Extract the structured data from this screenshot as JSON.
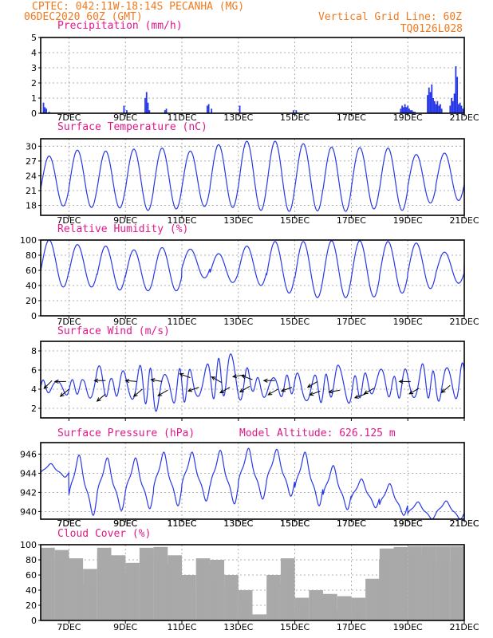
{
  "header": {
    "left_line1": "CPTEC:   042:11W-18:14S  PECANHA (MG)",
    "left_line2": "06DEC2020 60Z (GMT)",
    "right_line1": "Vertical Grid Line: 60Z",
    "right_line2": "TQ0126L028"
  },
  "colors": {
    "header": "#f07a1e",
    "title": "#e0188a",
    "line": "#2838e6",
    "cloud": "#a9a9a9",
    "wind_barb": "#000000"
  },
  "x_ticks": [
    "7DEC",
    "9DEC",
    "11DEC",
    "13DEC",
    "15DEC",
    "17DEC",
    "19DEC",
    "21DEC"
  ],
  "chart_data": [
    {
      "type": "bar",
      "title": "Precipitation (mm/h)",
      "ylim": [
        0,
        5
      ],
      "yticks": [
        0,
        1,
        2,
        3,
        4,
        5
      ],
      "series": [
        {
          "x": [
            6.1,
            6.15,
            6.2,
            6.3,
            8.95,
            9.05,
            9.7,
            9.75,
            9.8,
            9.85,
            10.4,
            10.45,
            11.9,
            11.95,
            12.05,
            13.05,
            14.95,
            15.05,
            18.75,
            18.8,
            18.85,
            18.9,
            18.95,
            19.0,
            19.05,
            19.1,
            19.15,
            19.2,
            19.25,
            19.7,
            19.75,
            19.8,
            19.85,
            19.9,
            19.95,
            20.0,
            20.05,
            20.1,
            20.15,
            20.2,
            20.5,
            20.55,
            20.6,
            20.65,
            20.7,
            20.75,
            20.8,
            20.85,
            20.9,
            20.95,
            21.0
          ],
          "values": [
            0.7,
            0.4,
            0.3,
            0.1,
            0.5,
            0.2,
            1.0,
            1.4,
            0.7,
            0.2,
            0.2,
            0.3,
            0.5,
            0.6,
            0.3,
            0.5,
            0.2,
            0.2,
            0.3,
            0.5,
            0.4,
            0.6,
            0.4,
            0.5,
            0.3,
            0.2,
            0.2,
            0.1,
            0.1,
            1.2,
            1.7,
            1.4,
            1.9,
            1.0,
            0.8,
            0.6,
            0.8,
            0.5,
            0.6,
            0.3,
            0.5,
            1.0,
            0.8,
            1.3,
            3.1,
            2.4,
            0.6,
            0.7,
            0.5,
            0.3,
            0.4
          ]
        }
      ]
    },
    {
      "type": "line",
      "title": "Surface Temperature (nC)",
      "ylim": [
        16,
        31.5
      ],
      "yticks": [
        18,
        21,
        24,
        27,
        30
      ],
      "tmin": [
        17.9,
        17.6,
        17.5,
        17.0,
        17.3,
        17.8,
        17.6,
        17.0,
        16.8,
        16.9,
        16.8,
        17.3,
        17.0,
        18.5,
        19.0,
        20.2
      ],
      "tmax": [
        28.0,
        29.2,
        29.0,
        29.4,
        29.6,
        29.0,
        30.3,
        31.0,
        31.0,
        30.5,
        29.8,
        29.7,
        29.6,
        28.3,
        28.6,
        25.0
      ]
    },
    {
      "type": "line",
      "title": "Relative Humidity (%)",
      "ylim": [
        0,
        100
      ],
      "yticks": [
        0,
        20,
        40,
        60,
        80,
        100
      ],
      "hmax": [
        100,
        94,
        92,
        87,
        90,
        88,
        82,
        92,
        98,
        98,
        99,
        99,
        98,
        96,
        84,
        100,
        98
      ],
      "hmin": [
        38,
        38,
        34,
        33,
        33,
        50,
        44,
        40,
        30,
        24,
        24,
        25,
        30,
        36,
        43,
        56,
        60
      ]
    },
    {
      "type": "line",
      "title": "Surface Wind (m/s)",
      "ylim": [
        1,
        9
      ],
      "yticks": [
        2,
        4,
        6,
        8
      ],
      "wmax": [
        5.0,
        4.8,
        5.0,
        5.0,
        6.7,
        5.1,
        6.1,
        6.5,
        6.1,
        5.4,
        6.3,
        5.9,
        6.8,
        7.5,
        7.9,
        5.3,
        5.1,
        5.3,
        5.7,
        5.6,
        5.3,
        6.6,
        5.3,
        5.7,
        6.2,
        5.3,
        6.3,
        6.7,
        5.7,
        6.4,
        6.8
      ],
      "wmin": [
        3.4,
        3.8,
        3.3,
        3.6,
        2.5,
        3.6,
        2.7,
        3.2,
        1.5,
        2.6,
        2.5,
        3.3,
        2.9,
        3.3,
        2.7,
        3.8,
        3.0,
        3.2,
        3.6,
        2.6,
        2.6,
        3.6,
        2.3,
        3.6,
        3.4,
        3.1,
        3.0,
        3.3,
        2.8,
        2.5,
        3.7
      ],
      "barbs": [
        [
          6.4,
          4.9,
          -135
        ],
        [
          6.9,
          4.8,
          180
        ],
        [
          7.0,
          4.0,
          -140
        ],
        [
          8.3,
          4.9,
          180
        ],
        [
          8.3,
          3.5,
          -140
        ],
        [
          9.4,
          4.8,
          175
        ],
        [
          9.6,
          4.0,
          -140
        ],
        [
          10.3,
          4.8,
          170
        ],
        [
          10.5,
          3.9,
          -150
        ],
        [
          11.3,
          5.2,
          160
        ],
        [
          11.6,
          4.2,
          -160
        ],
        [
          12.4,
          4.7,
          150
        ],
        [
          12.7,
          4.2,
          -150
        ],
        [
          13.2,
          5.5,
          -170
        ],
        [
          13.4,
          4.3,
          -150
        ],
        [
          13.5,
          5.0,
          160
        ],
        [
          14.3,
          4.9,
          180
        ],
        [
          14.4,
          4.0,
          -150
        ],
        [
          14.9,
          4.2,
          -160
        ],
        [
          15.8,
          4.8,
          -150
        ],
        [
          15.9,
          3.8,
          -160
        ],
        [
          16.6,
          3.9,
          -170
        ],
        [
          17.5,
          3.5,
          -160
        ],
        [
          17.8,
          4.1,
          -150
        ],
        [
          19.1,
          4.8,
          180
        ],
        [
          19.4,
          4.1,
          -150
        ],
        [
          20.5,
          4.4,
          -140
        ]
      ]
    },
    {
      "type": "line",
      "title": "Surface Pressure (hPa)",
      "subtitle": "Model Altitude: 626.125 m",
      "ylim": [
        939.2,
        947.2
      ],
      "yticks": [
        940,
        942,
        944,
        946
      ],
      "pmax": [
        945.0,
        945.9,
        945.6,
        945.6,
        946.2,
        946.2,
        946.4,
        946.6,
        946.5,
        946.2,
        944.8,
        943.4,
        942.9,
        941.0,
        941.1,
        939.9,
        940.4
      ],
      "pmin": [
        943.6,
        939.6,
        940.1,
        940.3,
        940.6,
        941.1,
        940.8,
        941.3,
        941.6,
        940.6,
        940.2,
        940.4,
        939.6,
        939.2,
        939.2,
        939.3,
        939.5
      ]
    },
    {
      "type": "bar",
      "title": "Cloud Cover (%)",
      "ylim": [
        0,
        100
      ],
      "yticks": [
        0,
        20,
        40,
        60,
        80,
        100
      ],
      "x": [
        6.25,
        6.75,
        7.25,
        7.75,
        8.25,
        8.75,
        9.25,
        9.75,
        10.25,
        10.75,
        11.25,
        11.75,
        12.25,
        12.75,
        13.25,
        13.75,
        14.25,
        14.75,
        15.25,
        15.75,
        16.25,
        16.75,
        17.25,
        17.75,
        18.25,
        18.75,
        19.25,
        19.75,
        20.25,
        20.75
      ],
      "values": [
        96,
        93,
        82,
        68,
        96,
        86,
        76,
        96,
        97,
        86,
        60,
        82,
        80,
        60,
        40,
        8,
        60,
        82,
        30,
        40,
        35,
        32,
        30,
        55,
        95,
        97,
        98,
        98,
        98,
        98
      ]
    }
  ]
}
